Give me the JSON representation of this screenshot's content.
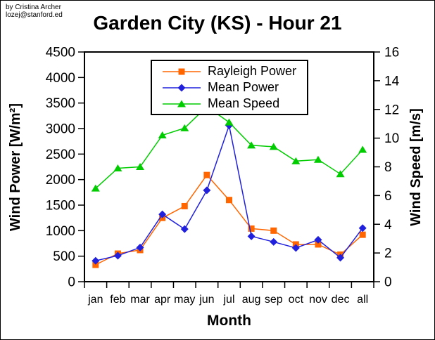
{
  "credit": {
    "line1": "by Cristina Archer",
    "line2": "lozej@stanford.ed"
  },
  "title": "Garden City (KS) - Hour 21",
  "chart_data": {
    "type": "line",
    "title": "Garden City (KS) - Hour 21",
    "categories": [
      "jan",
      "feb",
      "mar",
      "apr",
      "may",
      "jun",
      "jul",
      "aug",
      "sep",
      "oct",
      "nov",
      "dec",
      "all"
    ],
    "xlabel": "Month",
    "left_axis": {
      "label": "Wind Power [W/m²]",
      "min": 0,
      "max": 4500,
      "step": 500
    },
    "right_axis": {
      "label": "Wind Speed [m/s]",
      "min": 0,
      "max": 16,
      "step": 2
    },
    "grid": false,
    "legend_position": "top-center-inside",
    "series": [
      {
        "name": "Rayleigh Power",
        "axis": "left",
        "color": "#FF6600",
        "marker": "square",
        "values": [
          330,
          550,
          620,
          1250,
          1480,
          2090,
          1600,
          1040,
          1000,
          730,
          730,
          530,
          920
        ]
      },
      {
        "name": "Mean Power",
        "axis": "left",
        "color": "#2020DD",
        "marker": "diamond",
        "values": [
          410,
          510,
          670,
          1320,
          1030,
          1790,
          3060,
          890,
          780,
          660,
          820,
          470,
          1050
        ]
      },
      {
        "name": "Mean Speed",
        "axis": "right",
        "color": "#00CC00",
        "marker": "triangle",
        "values": [
          6.5,
          7.9,
          8.0,
          10.2,
          10.7,
          12.2,
          11.1,
          9.5,
          9.4,
          8.4,
          8.5,
          7.5,
          9.2
        ]
      }
    ]
  }
}
